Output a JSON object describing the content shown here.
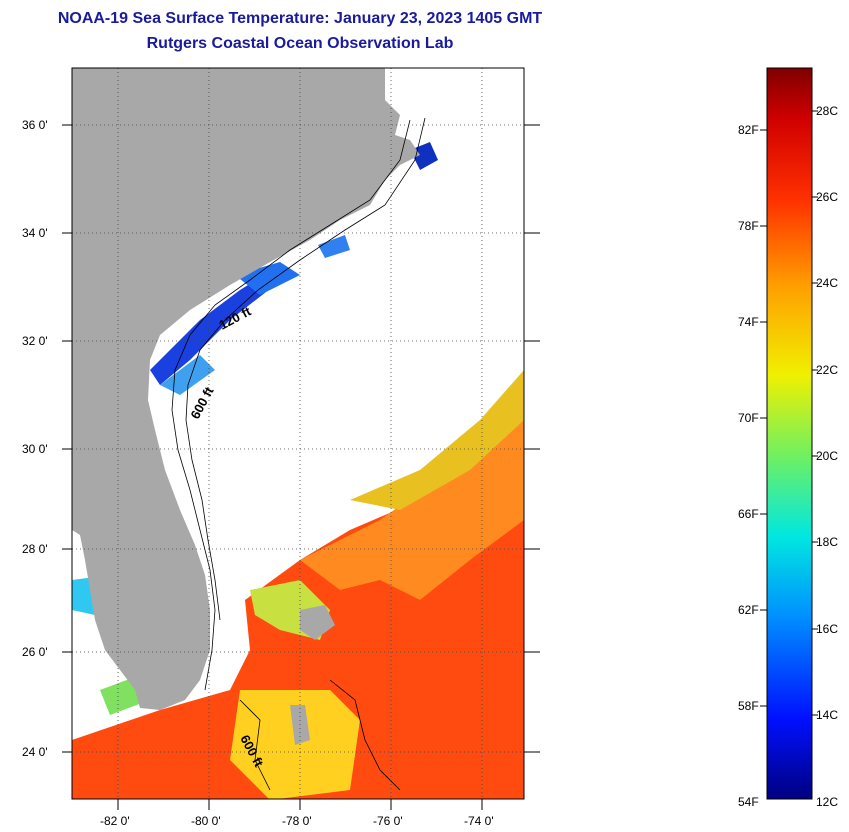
{
  "header": {
    "title": "NOAA-19 Sea Surface Temperature:  January 23, 2023 1405 GMT",
    "subtitle": "Rutgers Coastal Ocean Observation Lab"
  },
  "map": {
    "lat_labels": [
      "36 0'",
      "34 0'",
      "32 0'",
      "30 0'",
      "28 0'",
      "26 0'",
      "24 0'"
    ],
    "lon_labels": [
      "-82 0'",
      "-80 0'",
      "-78 0'",
      "-76 0'",
      "-74 0'"
    ],
    "contour_labels": [
      "120 ft",
      "600 ft",
      "600 ft"
    ]
  },
  "colorbar": {
    "f_labels": [
      "82F",
      "78F",
      "74F",
      "70F",
      "66F",
      "62F",
      "58F",
      "54F"
    ],
    "c_labels": [
      "28C",
      "26C",
      "24C",
      "22C",
      "20C",
      "18C",
      "16C",
      "14C",
      "12C"
    ]
  },
  "colors": {
    "land": "#a8a8a8",
    "title": "#1a1a9c"
  }
}
